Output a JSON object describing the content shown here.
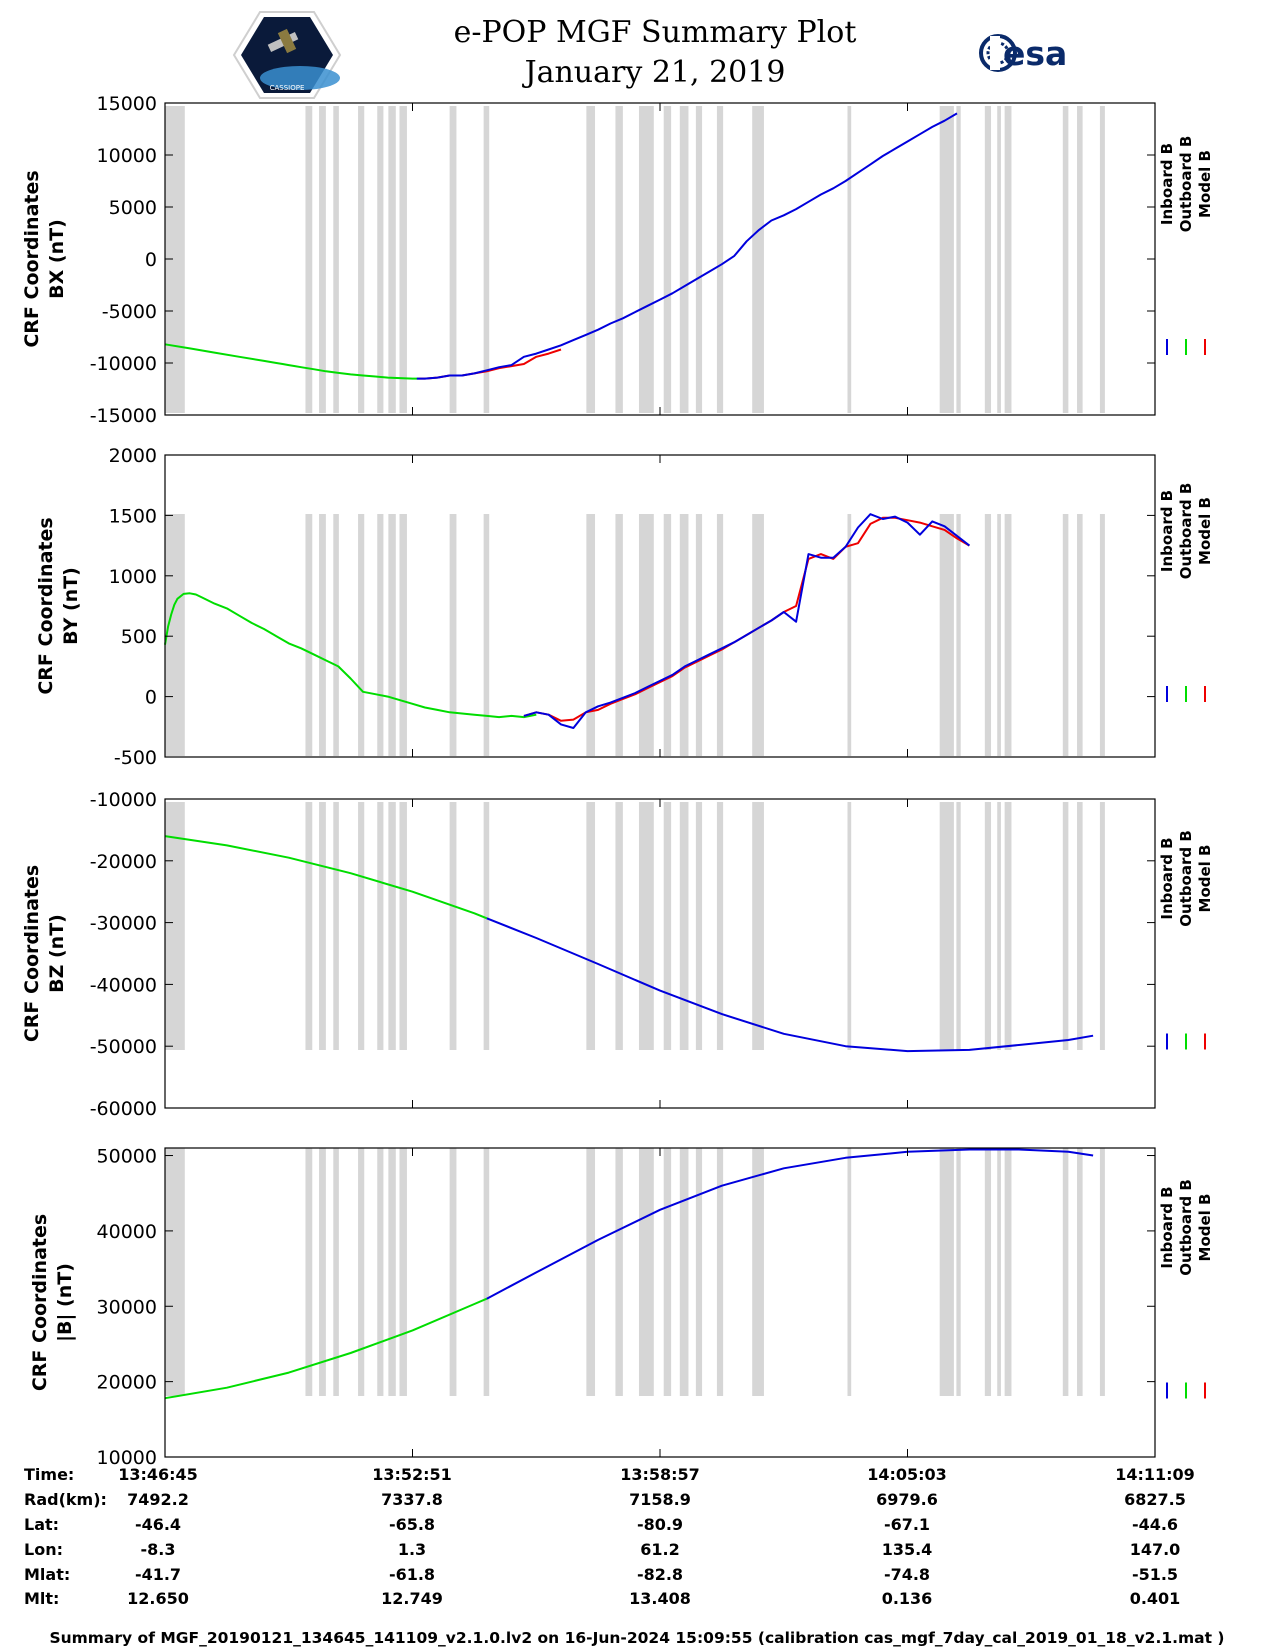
{
  "header": {
    "title_line1": "e-POP MGF Summary Plot",
    "title_line2": "January 21, 2019",
    "logo_left_text": "CASSIOPE",
    "logo_right_text": "esa"
  },
  "legend": [
    "Inboard B",
    "Outboard B",
    "Model B"
  ],
  "colors": {
    "inboard": "#0000dd",
    "outboard": "#00dd00",
    "model": "#ee0000",
    "gap": "#d6d6d6"
  },
  "chart_data": [
    {
      "type": "line",
      "ylabel": [
        "CRF Coordinates",
        "BX (nT)"
      ],
      "ylim": [
        -15000,
        15000
      ],
      "yticks": [
        "15000",
        "10000",
        "5000",
        "0",
        "-5000",
        "-10000",
        "-15000"
      ],
      "x_minutes": [
        0,
        4,
        8,
        12,
        16,
        18,
        19,
        20,
        21,
        22,
        23,
        24,
        26,
        28,
        30,
        32,
        34,
        36,
        38,
        40,
        40.7,
        41,
        42,
        43,
        44,
        46,
        48,
        50,
        52,
        54,
        56,
        58,
        60,
        62,
        64,
        66,
        68,
        70,
        72,
        74,
        76,
        78,
        80,
        82,
        84,
        86,
        88,
        90,
        92,
        94,
        96,
        98,
        100,
        102,
        104,
        106,
        108,
        110,
        112,
        114,
        116,
        118,
        120,
        122,
        124,
        126,
        128,
        130,
        132,
        134,
        136,
        138,
        140,
        142,
        144,
        146,
        148,
        150,
        152,
        154,
        156,
        158,
        160
      ],
      "series": [
        {
          "name": "Outboard B",
          "color": "outboard",
          "range": [
            0,
            41
          ],
          "values": [
            -8200,
            -8600,
            -9000,
            -9400,
            -9800,
            -10000,
            -10100,
            -10200,
            -10300,
            -10400,
            -10500,
            -10600,
            -10800,
            -10950,
            -11100,
            -11200,
            -11300,
            -11400,
            -11450,
            -11500,
            -11500,
            -11500
          ]
        },
        {
          "name": "Model B",
          "color": "model",
          "range": [
            41,
            68
          ],
          "values": [
            -11500,
            -11500,
            -11450,
            -11400,
            -11200,
            -11200,
            -11000,
            -10800,
            -10500,
            -10300,
            -10100,
            -9400,
            -9100,
            -8700
          ]
        },
        {
          "name": "Inboard B",
          "color": "inboard",
          "range": [
            40.7,
            160
          ],
          "values": [
            -11500,
            -11500,
            -11500,
            -11450,
            -11400,
            -11200,
            -11200,
            -11000,
            -10700,
            -10400,
            -10200,
            -9400,
            -9100,
            -8700,
            -8300,
            -7800,
            -7300,
            -6800,
            -6200,
            -5700,
            -5100,
            -4500,
            -3900,
            -3300,
            -2600,
            -1900,
            -1200,
            -500,
            300,
            1700,
            2800,
            3700,
            4200,
            4800,
            5500,
            6200,
            6800,
            7500,
            8300,
            9100,
            9900,
            10600,
            11300,
            12000,
            12700,
            13300,
            14000
          ]
        }
      ]
    },
    {
      "type": "line",
      "ylabel": [
        "CRF Coordinates",
        "BY (nT)"
      ],
      "ylim": [
        -500,
        2000
      ],
      "yticks": [
        "2000",
        "1500",
        "1000",
        "500",
        "0",
        "-500"
      ],
      "x_minutes": [
        0,
        0.5,
        1,
        1.5,
        2,
        3,
        4,
        5,
        6,
        8,
        10,
        12,
        14,
        16,
        18,
        20,
        22,
        24,
        26,
        28,
        30,
        32,
        34,
        36,
        38,
        40,
        42,
        44,
        46,
        48,
        50,
        52,
        54,
        56,
        58,
        60,
        62,
        64,
        66,
        68,
        70,
        72,
        74,
        76,
        78,
        80,
        82,
        84,
        86,
        88,
        90,
        92,
        94,
        96,
        98,
        100,
        102,
        104,
        106,
        108,
        110,
        112,
        114,
        116,
        118,
        120,
        122,
        124,
        126,
        128,
        130,
        132,
        134,
        136,
        138,
        140,
        142,
        144,
        146,
        148,
        150,
        152,
        154,
        156,
        158,
        160
      ],
      "series": [
        {
          "name": "Outboard B",
          "color": "outboard",
          "range": [
            0,
            58
          ],
          "values": [
            430,
            580,
            680,
            760,
            810,
            850,
            855,
            845,
            820,
            770,
            730,
            670,
            610,
            560,
            500,
            440,
            400,
            350,
            300,
            250,
            150,
            40,
            20,
            0,
            -30,
            -60,
            -90,
            -110,
            -130,
            -140,
            -150,
            -160,
            -170,
            -160,
            -170,
            -150
          ]
        },
        {
          "name": "Model B",
          "color": "model",
          "range": [
            58,
            160
          ],
          "values": [
            -160,
            -130,
            -150,
            -200,
            -190,
            -130,
            -110,
            -60,
            -20,
            20,
            70,
            120,
            170,
            240,
            290,
            340,
            390,
            450,
            510,
            570,
            630,
            700,
            750,
            1140,
            1180,
            1140,
            1240,
            1270,
            1430,
            1480,
            1480,
            1460,
            1440,
            1410,
            1380,
            1310,
            1250
          ]
        },
        {
          "name": "Inboard B",
          "color": "inboard",
          "range": [
            58,
            160
          ],
          "values": [
            -160,
            -130,
            -150,
            -230,
            -260,
            -130,
            -80,
            -50,
            -10,
            30,
            80,
            130,
            180,
            250,
            300,
            350,
            400,
            450,
            510,
            570,
            630,
            700,
            620,
            1180,
            1150,
            1150,
            1240,
            1400,
            1510,
            1470,
            1490,
            1440,
            1340,
            1450,
            1410,
            1330,
            1250
          ]
        }
      ]
    },
    {
      "type": "line",
      "ylabel": [
        "CRF Coordinates",
        "BZ (nT)"
      ],
      "ylim": [
        -60000,
        -10000
      ],
      "yticks": [
        "-10000",
        "-20000",
        "-30000",
        "-40000",
        "-50000",
        "-60000"
      ],
      "x_minutes": [
        0,
        10,
        20,
        30,
        40,
        50,
        52,
        60,
        70,
        80,
        90,
        100,
        110,
        120,
        130,
        138,
        146,
        150,
        155,
        160
      ],
      "series": [
        {
          "name": "Outboard B",
          "color": "outboard",
          "range": [
            0,
            52
          ],
          "values": [
            -16000,
            -17500,
            -19500,
            -22000,
            -25000,
            -28500,
            -29300
          ]
        },
        {
          "name": "Inboard B",
          "color": "inboard",
          "range": [
            52,
            160
          ],
          "values": [
            -29300,
            -32500,
            -36700,
            -41000,
            -44800,
            -48000,
            -50000,
            -50800,
            -50600,
            -49800,
            -49000,
            -48300
          ]
        }
      ]
    },
    {
      "type": "line",
      "ylabel": [
        "CRF Coordinates",
        "|B| (nT)"
      ],
      "ylim": [
        10000,
        51000
      ],
      "yticks": [
        "50000",
        "40000",
        "30000",
        "20000",
        "10000"
      ],
      "x_minutes": [
        0,
        10,
        20,
        30,
        40,
        50,
        52,
        60,
        70,
        80,
        90,
        100,
        110,
        120,
        130,
        138,
        146,
        150,
        155,
        160
      ],
      "series": [
        {
          "name": "Outboard B",
          "color": "outboard",
          "range": [
            0,
            52
          ],
          "values": [
            17800,
            19200,
            21200,
            23800,
            26800,
            30300,
            31000
          ]
        },
        {
          "name": "Inboard B",
          "color": "inboard",
          "range": [
            52,
            160
          ],
          "values": [
            31000,
            34500,
            38800,
            42800,
            46000,
            48300,
            49700,
            50500,
            50800,
            50800,
            50500,
            50000
          ]
        }
      ]
    }
  ],
  "gap_intervals_minutes": [
    [
      0,
      3.2
    ],
    [
      22.7,
      23.8
    ],
    [
      24.9,
      26.0
    ],
    [
      27.2,
      28.1
    ],
    [
      31.2,
      32.2
    ],
    [
      34.3,
      35.3
    ],
    [
      36.1,
      37.3
    ],
    [
      37.9,
      39.1
    ],
    [
      46.0,
      47.1
    ],
    [
      51.5,
      52.4
    ],
    [
      68.1,
      69.5
    ],
    [
      72.8,
      74.0
    ],
    [
      76.6,
      79.0
    ],
    [
      80.6,
      81.8
    ],
    [
      83.2,
      84.6
    ],
    [
      85.8,
      86.8
    ],
    [
      89.2,
      90.2
    ],
    [
      94.9,
      96.8
    ],
    [
      110.3,
      110.9
    ],
    [
      125.2,
      127.5
    ],
    [
      127.9,
      128.6
    ],
    [
      132.5,
      133.5
    ],
    [
      134.5,
      135.1
    ],
    [
      135.7,
      136.8
    ],
    [
      145.1,
      146.0
    ],
    [
      147.4,
      148.3
    ],
    [
      151.1,
      151.9
    ]
  ],
  "info_table": {
    "row_labels": [
      "Time:",
      "Rad(km):",
      "Lat:",
      "Lon:",
      "Mlat:",
      "Mlt:"
    ],
    "columns": [
      [
        "13:46:45",
        "7492.2",
        "-46.4",
        "-8.3",
        "-41.7",
        "12.650"
      ],
      [
        "13:52:51",
        "7337.8",
        "-65.8",
        "1.3",
        "-61.8",
        "12.749"
      ],
      [
        "13:58:57",
        "7158.9",
        "-80.9",
        "61.2",
        "-82.8",
        "13.408"
      ],
      [
        "14:05:03",
        "6979.6",
        "-67.1",
        "135.4",
        "-74.8",
        "0.136"
      ],
      [
        "14:11:09",
        "6827.5",
        "-44.6",
        "147.0",
        "-51.5",
        "0.401"
      ]
    ]
  },
  "footer": "Summary of MGF_20190121_134645_141109_v2.1.0.lv2 on 16-Jun-2024 15:09:55 (calibration cas_mgf_7day_cal_2019_01_18_v2.1.mat )"
}
